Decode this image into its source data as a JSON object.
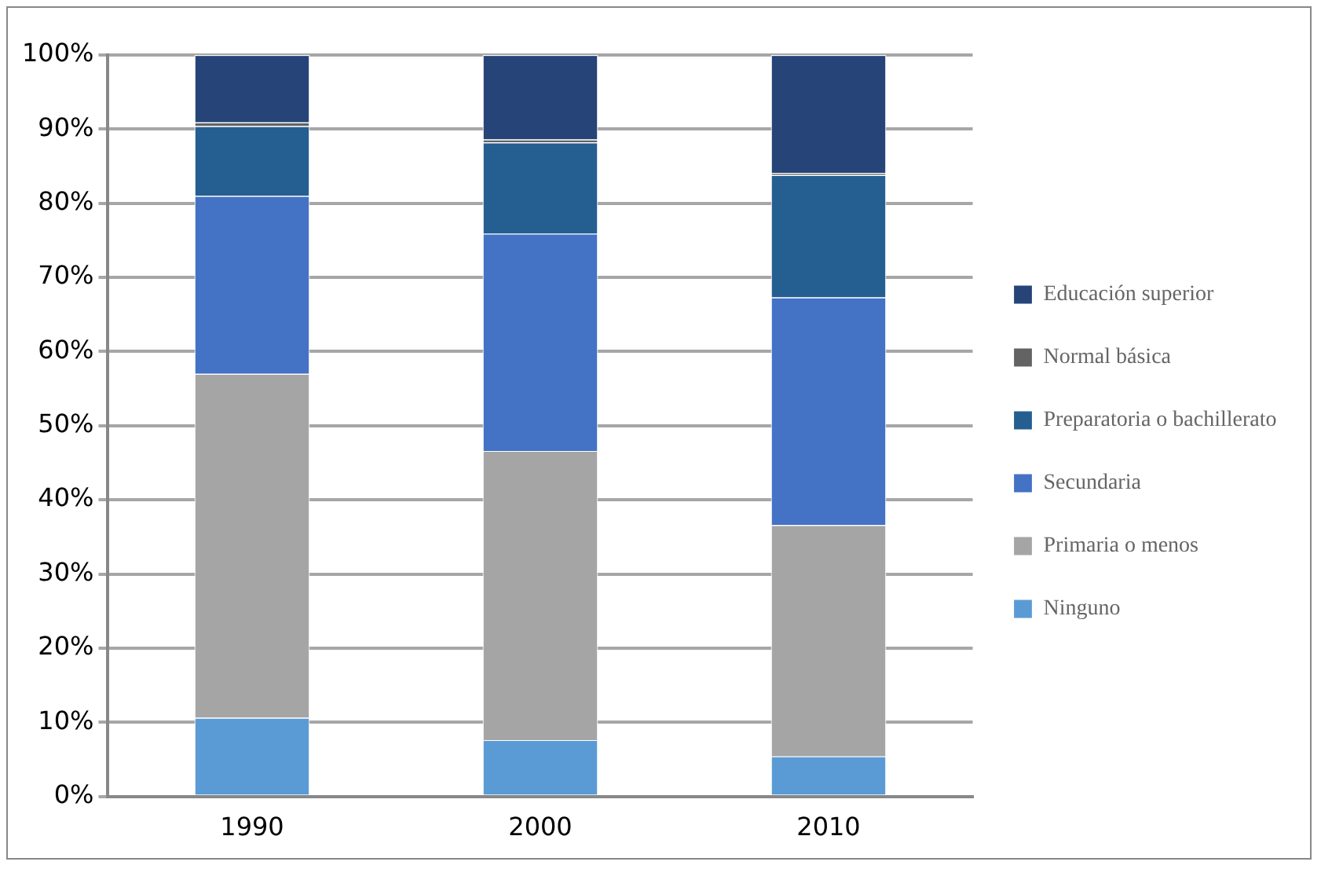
{
  "chart_data": {
    "type": "bar",
    "stacked": true,
    "categories": [
      "1990",
      "2000",
      "2010"
    ],
    "series": [
      {
        "name": "Ninguno",
        "color": "#5b9bd5",
        "values": [
          10.6,
          7.6,
          5.4
        ]
      },
      {
        "name": "Primaria o menos",
        "color": "#a5a5a5",
        "values": [
          46.4,
          39.0,
          31.2
        ]
      },
      {
        "name": "Secundaria",
        "color": "#4472c4",
        "values": [
          24.0,
          29.3,
          30.7
        ]
      },
      {
        "name": "Preparatoria o bachillerato",
        "color": "#255e91",
        "values": [
          9.4,
          12.3,
          16.5
        ]
      },
      {
        "name": "Normal básica",
        "color": "#636363",
        "values": [
          0.5,
          0.4,
          0.3
        ]
      },
      {
        "name": "Educación superior",
        "color": "#264478",
        "values": [
          9.1,
          11.4,
          15.9
        ]
      }
    ],
    "ylim": [
      0,
      100
    ],
    "yticks": [
      {
        "value": 0,
        "label": "0%"
      },
      {
        "value": 10,
        "label": "10%"
      },
      {
        "value": 20,
        "label": "20%"
      },
      {
        "value": 30,
        "label": "30%"
      },
      {
        "value": 40,
        "label": "40%"
      },
      {
        "value": 50,
        "label": "50%"
      },
      {
        "value": 60,
        "label": "60%"
      },
      {
        "value": 70,
        "label": "70%"
      },
      {
        "value": 80,
        "label": "80%"
      },
      {
        "value": 90,
        "label": "90%"
      },
      {
        "value": 100,
        "label": "100%"
      }
    ],
    "grid": "y",
    "legend": "right"
  }
}
